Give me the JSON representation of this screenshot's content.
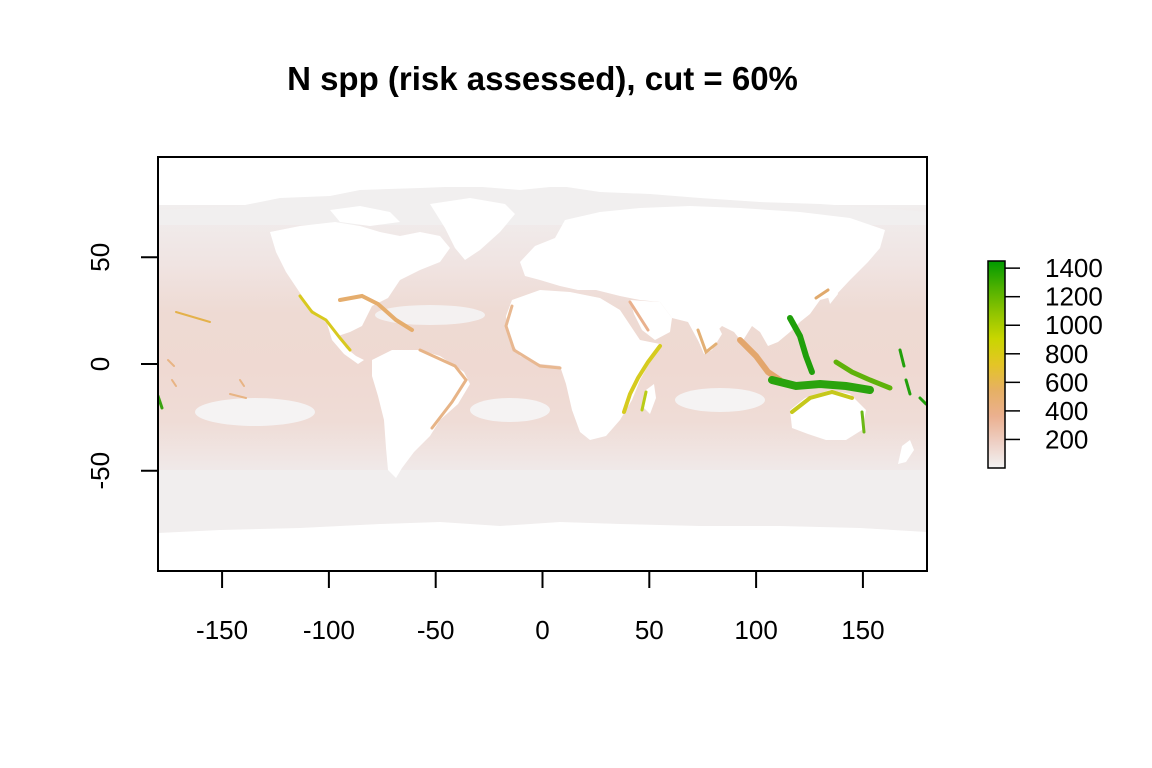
{
  "chart_data": {
    "type": "heatmap",
    "title": "N spp (risk assessed), cut = 60%",
    "xlabel": "",
    "ylabel": "",
    "xlim": [
      -180,
      180
    ],
    "ylim": [
      -97,
      97
    ],
    "x_ticks": [
      -150,
      -100,
      -50,
      0,
      50,
      100,
      150
    ],
    "y_ticks": [
      -50,
      0,
      50
    ],
    "x_tick_labels": [
      "-150",
      "-100",
      "-50",
      "0",
      "50",
      "100",
      "150"
    ],
    "y_tick_labels": [
      "-50",
      "0",
      "50"
    ],
    "legend": {
      "placement": "right",
      "range": [
        0,
        1450
      ],
      "ticks": [
        200,
        400,
        600,
        800,
        1000,
        1200,
        1400
      ],
      "tick_labels": [
        "200",
        "400",
        "600",
        "800",
        "1000",
        "1200",
        "1400"
      ],
      "colors": [
        "#f2f2f2",
        "#eecfc4",
        "#ebb08f",
        "#e6b064",
        "#e4c526",
        "#c9d600",
        "#8fc400",
        "#4cb000",
        "#009a00"
      ]
    },
    "colors": {
      "ocean_low": "#f2eeee",
      "ocean_mid": "#efd6cf",
      "ocean_high": "#ebc2b4",
      "coast_orange": "#e8a867",
      "coast_yellow": "#d8cf1d",
      "coast_green": "#2da10a",
      "land": "#ffffff"
    }
  }
}
